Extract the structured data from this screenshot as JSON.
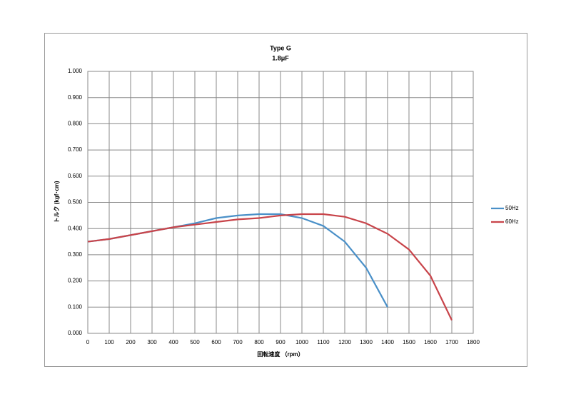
{
  "chart_data": {
    "type": "line",
    "title": "Type G",
    "subtitle": "1.8μF",
    "x_label": "回転速度 （rpm）",
    "y_label": "トルク (kgf･cm)",
    "xlim": [
      0,
      1800
    ],
    "xticks": [
      0,
      100,
      200,
      300,
      400,
      500,
      600,
      700,
      800,
      900,
      1000,
      1100,
      1200,
      1300,
      1400,
      1500,
      1600,
      1700,
      1800
    ],
    "ylim": [
      0,
      1
    ],
    "yticks": [
      {
        "value": 0,
        "label": "0.000"
      },
      {
        "value": 0.1,
        "label": "0.100"
      },
      {
        "value": 0.2,
        "label": "0.200"
      },
      {
        "value": 0.3,
        "label": "0.300"
      },
      {
        "value": 0.4,
        "label": "0.400"
      },
      {
        "value": 0.5,
        "label": "0.500"
      },
      {
        "value": 0.6,
        "label": "0.600"
      },
      {
        "value": 0.7,
        "label": "0.700"
      },
      {
        "value": 0.8,
        "label": "0.800"
      },
      {
        "value": 0.9,
        "label": "0.900"
      },
      {
        "value": 1,
        "label": "1.000"
      }
    ],
    "grid": true,
    "legend": "right",
    "series": [
      {
        "name": "50Hz",
        "color": "#4a90c8",
        "x": [
          0,
          100,
          200,
          300,
          400,
          500,
          600,
          700,
          800,
          900,
          1000,
          1100,
          1200,
          1300,
          1400
        ],
        "values": [
          0.35,
          0.36,
          0.375,
          0.39,
          0.405,
          0.42,
          0.44,
          0.45,
          0.455,
          0.455,
          0.44,
          0.41,
          0.35,
          0.25,
          0.1
        ]
      },
      {
        "name": "60Hz",
        "color": "#c8444a",
        "x": [
          0,
          100,
          200,
          300,
          400,
          500,
          600,
          700,
          800,
          900,
          1000,
          1100,
          1200,
          1300,
          1400,
          1500,
          1600,
          1700
        ],
        "values": [
          0.35,
          0.36,
          0.375,
          0.39,
          0.405,
          0.415,
          0.425,
          0.435,
          0.44,
          0.45,
          0.455,
          0.455,
          0.445,
          0.42,
          0.38,
          0.32,
          0.22,
          0.05
        ]
      }
    ]
  }
}
